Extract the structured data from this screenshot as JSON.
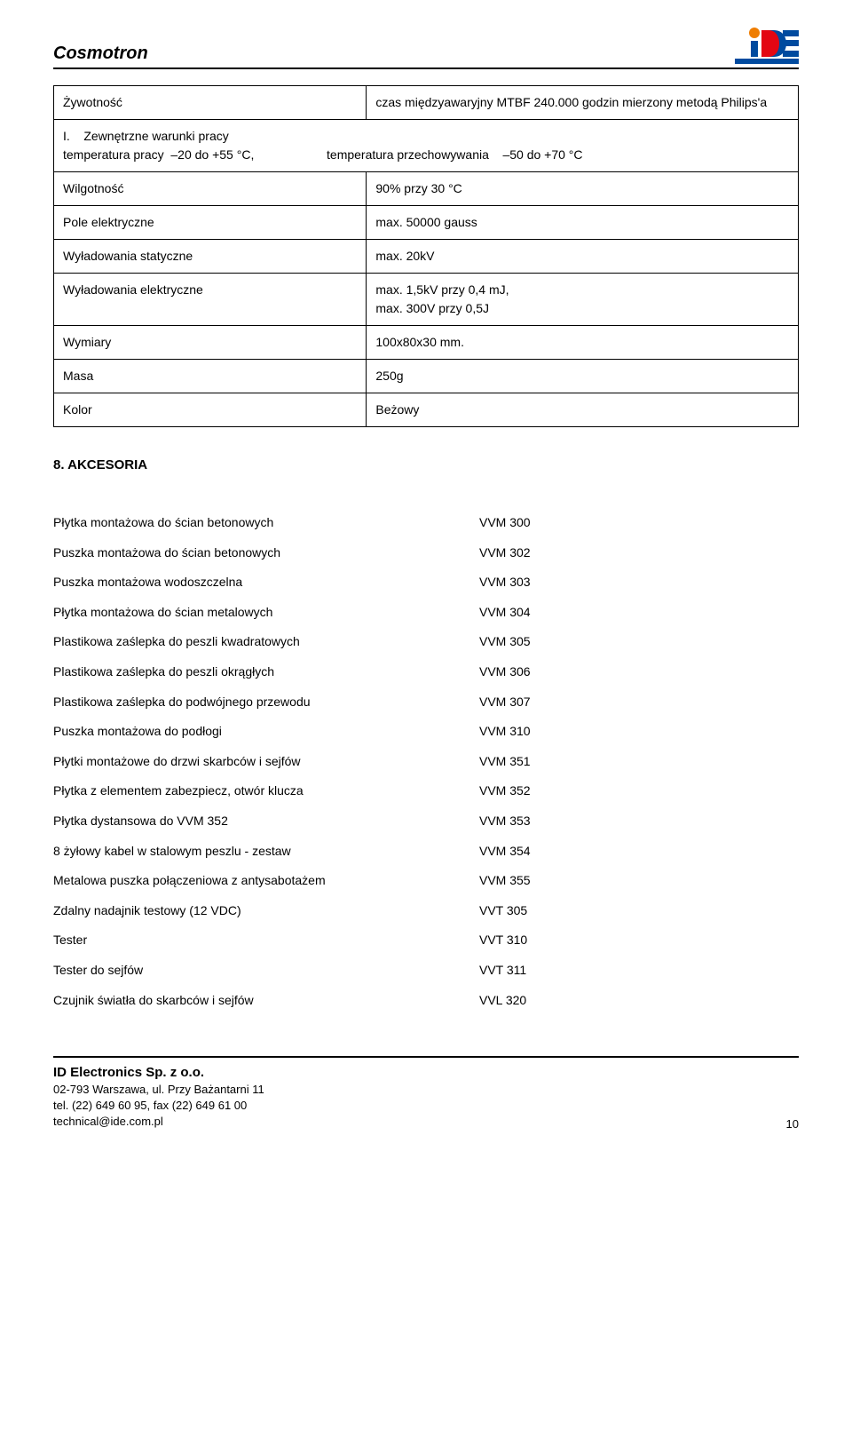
{
  "header": {
    "brand": "Cosmotron",
    "logo_colors": {
      "bar": "#004a9f",
      "d_left": "#e30613",
      "d_right": "#004a9f",
      "dot": "#ef7d00"
    }
  },
  "spec_table": {
    "rows": [
      {
        "label": "Żywotność",
        "value": "czas międzyawaryjny MTBF 240.000 godzin mierzony metodą Philips'a"
      },
      {
        "label_html": "I.    Zewnętrzne warunki pracy\ntemperatura pracy  –20 do +55 °C,                     temperatura przechowywania    –50 do +70 °C",
        "colspan": 2
      },
      {
        "label": "Wilgotność",
        "value": "90% przy 30 °C"
      },
      {
        "label": "Pole elektryczne",
        "value": "max. 50000 gauss"
      },
      {
        "label": "Wyładowania statyczne",
        "value": "max. 20kV"
      },
      {
        "label": "Wyładowania elektryczne",
        "value": "max. 1,5kV przy 0,4 mJ,\nmax. 300V przy 0,5J"
      },
      {
        "label": "Wymiary",
        "value": "100x80x30 mm."
      },
      {
        "label": "Masa",
        "value": "250g"
      },
      {
        "label": "Kolor",
        "value": "Beżowy"
      }
    ]
  },
  "section_heading": "8. AKCESORIA",
  "accessories": [
    {
      "label": "Płytka montażowa do ścian betonowych",
      "code": "VVM 300"
    },
    {
      "label": "Puszka montażowa do ścian betonowych",
      "code": "VVM 302"
    },
    {
      "label": "Puszka montażowa wodoszczelna",
      "code": "VVM 303"
    },
    {
      "label": "Płytka montażowa do ścian metalowych",
      "code": "VVM 304"
    },
    {
      "label": "Plastikowa zaślepka do peszli kwadratowych",
      "code": "VVM 305"
    },
    {
      "label": "Plastikowa zaślepka do peszli okrągłych",
      "code": "VVM 306"
    },
    {
      "label": "Plastikowa zaślepka do podwójnego przewodu",
      "code": "VVM 307"
    },
    {
      "label": "Puszka montażowa do podłogi",
      "code": "VVM 310"
    },
    {
      "label": "Płytki montażowe do drzwi skarbców i sejfów",
      "code": "VVM 351"
    },
    {
      "label": "Płytka z elementem zabezpiecz, otwór klucza",
      "code": "VVM 352"
    },
    {
      "label": "Płytka dystansowa do VVM 352",
      "code": "VVM 353"
    },
    {
      "label": "8 żyłowy kabel w stalowym peszlu - zestaw",
      "code": "VVM 354"
    },
    {
      "label": "Metalowa puszka połączeniowa z antysabotażem",
      "code": "VVM 355"
    },
    {
      "label": "Zdalny nadajnik testowy (12 VDC)",
      "code": "VVT 305"
    },
    {
      "label": "Tester",
      "code": "VVT 310"
    },
    {
      "label": "Tester do sejfów",
      "code": "VVT 311"
    },
    {
      "label": "Czujnik światła do skarbców i sejfów",
      "code": "VVL 320"
    }
  ],
  "footer": {
    "company": "ID Electronics Sp. z o.o.",
    "address": "02-793 Warszawa, ul. Przy Bażantarni 11",
    "phone": "tel. (22) 649 60 95, fax (22) 649 61 00",
    "email": "technical@ide.com.pl",
    "page": "10"
  }
}
